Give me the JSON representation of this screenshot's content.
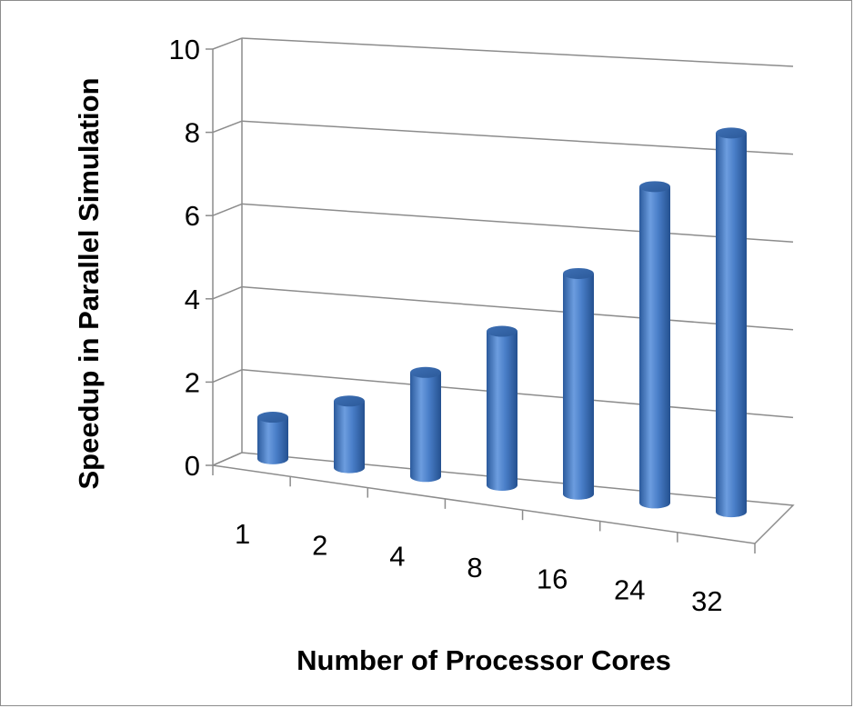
{
  "chart_data": {
    "type": "bar",
    "style": "3d-cylinder",
    "categories": [
      "1",
      "2",
      "4",
      "8",
      "16",
      "24",
      "32"
    ],
    "series": [
      {
        "values": [
          1.0,
          1.6,
          2.5,
          3.7,
          5.3,
          7.6,
          9.1
        ]
      }
    ],
    "xlabel": "Number of Processor Cores",
    "ylabel": "Speedup in Parallel Simulation",
    "ylim": [
      0,
      10
    ],
    "yticks": [
      "0",
      "2",
      "4",
      "6",
      "8",
      "10"
    ],
    "grid": true,
    "legend": "none",
    "bar_color": "#4a7fc9",
    "grid_color": "#8c8c8c"
  }
}
